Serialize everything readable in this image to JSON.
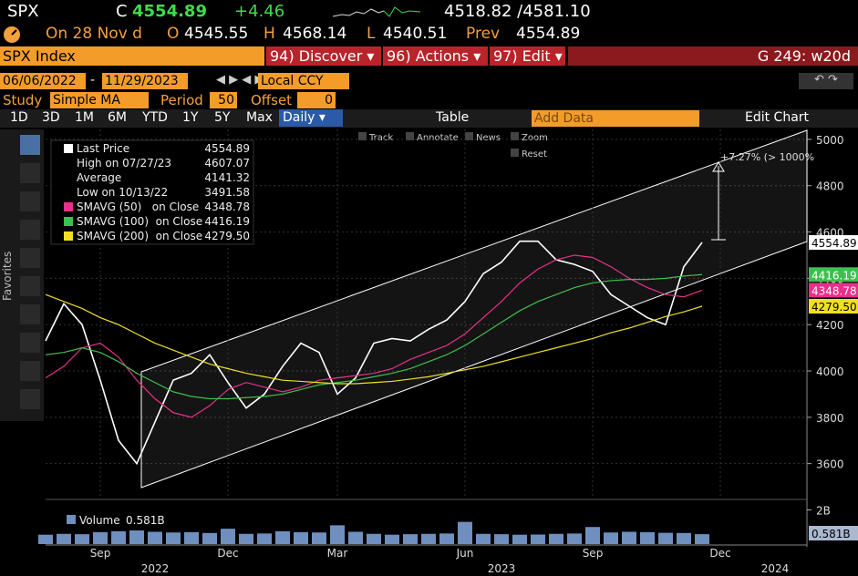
{
  "header": {
    "ticker": "SPX",
    "c_label": "C",
    "last": "4554.89",
    "change": "+4.46",
    "range": "4518.82 /4581.10"
  },
  "quote": {
    "date": "On 28 Nov d",
    "o_label": "O",
    "open": "4545.55",
    "h_label": "H",
    "high": "4568.14",
    "l_label": "L",
    "low": "4540.51",
    "prev_label": "Prev",
    "prev": "4554.89"
  },
  "command": {
    "security": "SPX Index",
    "buttons": [
      "94) Discover ▾",
      "96) Actions ▾",
      "97) Edit ▾"
    ],
    "page": "G 249: w20d"
  },
  "range_bar": {
    "start": "06/06/2022",
    "sep": "-",
    "end": "11/29/2023",
    "currency": "Local CCY"
  },
  "study": {
    "label": "Study",
    "type": "Simple MA",
    "period_label": "Period",
    "period": "50",
    "offset_label": "Offset",
    "offset": "0"
  },
  "toolbar": {
    "periods": [
      "1D",
      "3D",
      "1M",
      "6M",
      "YTD",
      "1Y",
      "5Y",
      "Max"
    ],
    "frequency": "Daily ▾",
    "table": "Table",
    "add_data": "Add Data",
    "edit_chart": "Edit Chart"
  },
  "chart_tools": [
    "Track",
    "Annotate",
    "News",
    "Zoom",
    "Reset"
  ],
  "sidebar": "Favorites",
  "annotation": "+7.27% (> 1000%",
  "chart_data": {
    "type": "line",
    "categories": [
      null,
      null,
      null,
      "Sep",
      null,
      null,
      null,
      null,
      null,
      null,
      "Dec",
      null,
      null,
      null,
      null,
      null,
      "Mar",
      null,
      null,
      null,
      null,
      null,
      null,
      "Jun",
      null,
      null,
      null,
      null,
      null,
      null,
      "Sep",
      null,
      null,
      null,
      null,
      null,
      null,
      "Dec",
      null,
      null,
      null,
      null
    ],
    "years": [
      null,
      null,
      null,
      null,
      null,
      null,
      "2022",
      null,
      null,
      null,
      null,
      null,
      null,
      null,
      null,
      null,
      null,
      null,
      null,
      null,
      null,
      null,
      null,
      null,
      null,
      "2023",
      null,
      null,
      null,
      null,
      null,
      null,
      null,
      null,
      null,
      null,
      null,
      null,
      null,
      null,
      "2024",
      null
    ],
    "series": [
      {
        "name": "Last Price",
        "color": "#ffffff",
        "last_label": "4554.89",
        "values": [
          4130,
          4290,
          4200,
          3960,
          3700,
          3600,
          3780,
          3960,
          3990,
          4070,
          3950,
          3840,
          3900,
          4020,
          4120,
          4080,
          3900,
          3970,
          4120,
          4140,
          4130,
          4180,
          4220,
          4300,
          4420,
          4470,
          4560,
          4560,
          4480,
          4460,
          4430,
          4330,
          4280,
          4230,
          4200,
          4450,
          4554.89,
          null,
          null,
          null,
          null,
          null
        ]
      },
      {
        "name": "SMAVG (50)   on Close",
        "color": "#e8308a",
        "last_label": "4348.78",
        "values": [
          3970,
          4020,
          4100,
          4120,
          4060,
          3960,
          3880,
          3820,
          3800,
          3850,
          3920,
          3950,
          3930,
          3910,
          3930,
          3960,
          3970,
          3980,
          3990,
          4010,
          4050,
          4080,
          4110,
          4160,
          4230,
          4300,
          4380,
          4440,
          4480,
          4500,
          4490,
          4450,
          4400,
          4360,
          4330,
          4320,
          4348.78,
          null,
          null,
          null,
          null,
          null
        ]
      },
      {
        "name": "SMAVG (100)  on Close",
        "color": "#3fbf4f",
        "last_label": "4416.19",
        "values": [
          4070,
          4080,
          4100,
          4080,
          4040,
          3990,
          3950,
          3910,
          3890,
          3880,
          3880,
          3885,
          3890,
          3900,
          3920,
          3940,
          3950,
          3960,
          3975,
          3990,
          4010,
          4040,
          4070,
          4110,
          4160,
          4210,
          4260,
          4300,
          4330,
          4360,
          4380,
          4390,
          4395,
          4395,
          4400,
          4410,
          4416.19,
          null,
          null,
          null,
          null,
          null
        ]
      },
      {
        "name": "SMAVG (200)  on Close",
        "color": "#f0e020",
        "last_label": "4279.50",
        "values": [
          4330,
          4300,
          4270,
          4230,
          4200,
          4160,
          4120,
          4090,
          4060,
          4030,
          4010,
          3990,
          3975,
          3960,
          3955,
          3950,
          3945,
          3945,
          3950,
          3955,
          3965,
          3975,
          3990,
          4005,
          4020,
          4040,
          4060,
          4080,
          4100,
          4120,
          4140,
          4165,
          4185,
          4210,
          4235,
          4255,
          4279.5,
          null,
          null,
          null,
          null,
          null
        ]
      }
    ],
    "stats": [
      {
        "label": "High on 07/27/23",
        "value": "4607.07"
      },
      {
        "label": "Average",
        "value": "4141.32"
      },
      {
        "label": "Low on 10/13/22",
        "value": "3491.58"
      }
    ],
    "ylim": [
      3457,
      5043
    ],
    "yticks": [
      3600,
      3800,
      4000,
      4200,
      4400,
      4600,
      4800,
      5000
    ],
    "grid": true,
    "volume": {
      "label": "Volume",
      "last_label": "0.581B",
      "color": "#6f8fbf",
      "ylim": [
        0,
        2.4
      ],
      "yticks": [
        {
          "value": 2,
          "label": "2B"
        }
      ],
      "values": [
        0.55,
        0.6,
        0.58,
        0.7,
        0.75,
        0.8,
        0.72,
        0.68,
        0.7,
        0.65,
        0.9,
        0.6,
        0.62,
        0.75,
        0.7,
        0.68,
        1.1,
        0.72,
        0.6,
        0.55,
        0.58,
        0.6,
        0.62,
        1.3,
        0.6,
        0.58,
        0.55,
        0.56,
        0.6,
        0.62,
        1.0,
        0.68,
        0.72,
        0.7,
        0.66,
        0.65,
        0.581,
        null,
        null,
        null,
        null,
        null
      ]
    }
  }
}
